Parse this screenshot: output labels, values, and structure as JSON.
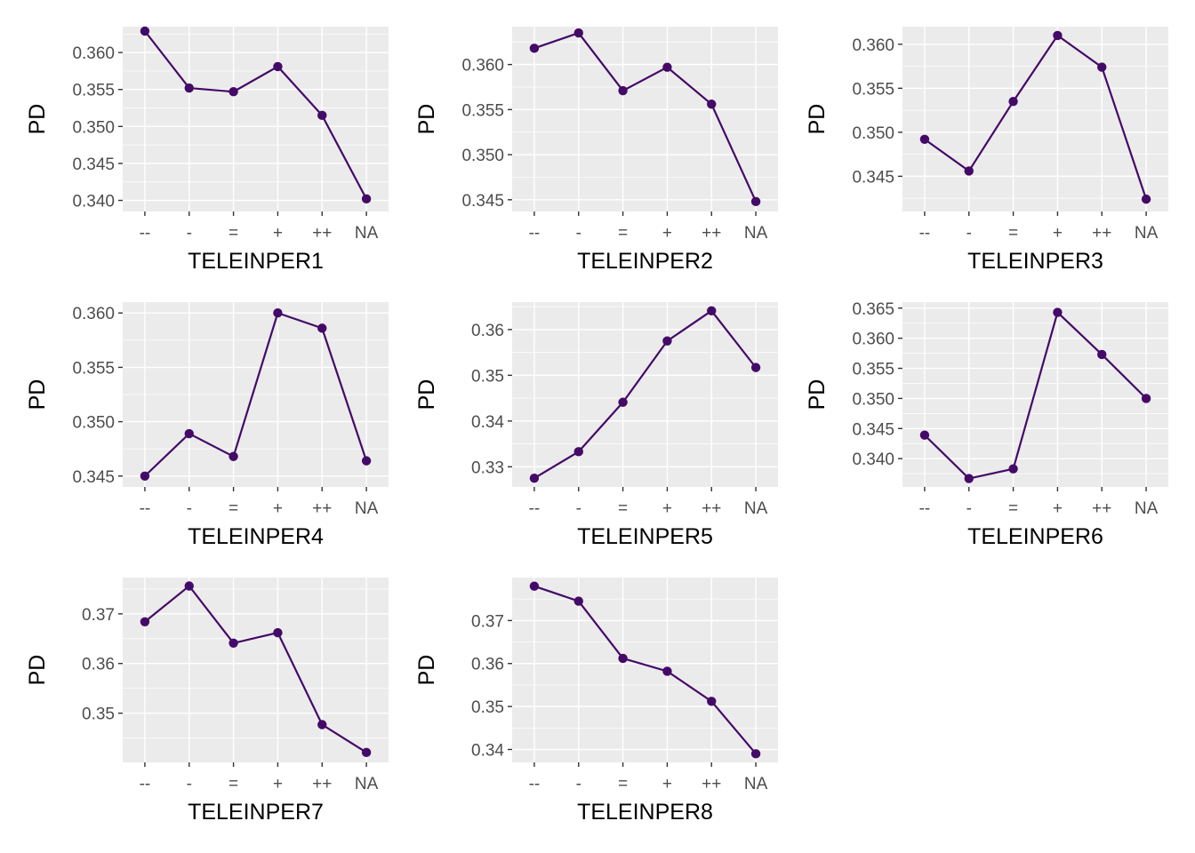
{
  "style": {
    "line_color": "#440a68",
    "panel_bg": "#ebebeb",
    "grid_color": "#ffffff",
    "text_color": "#4d4d4d",
    "title_color": "#000000"
  },
  "categories": [
    "--",
    "-",
    "=",
    "+",
    "++",
    "NA"
  ],
  "chart_data": [
    {
      "type": "line",
      "xlabel": "TELEINPER1",
      "ylabel": "PD",
      "ylim": [
        0.3385,
        0.3635
      ],
      "yticks": [
        "0.340",
        "0.345",
        "0.350",
        "0.355",
        "0.360"
      ],
      "ytick_values": [
        0.34,
        0.345,
        0.35,
        0.355,
        0.36
      ],
      "x": [
        "--",
        "-",
        "=",
        "+",
        "++",
        "NA"
      ],
      "values": [
        0.3629,
        0.3552,
        0.3547,
        0.3581,
        0.3515,
        0.3402
      ]
    },
    {
      "type": "line",
      "xlabel": "TELEINPER2",
      "ylabel": "PD",
      "ylim": [
        0.3437,
        0.3642
      ],
      "yticks": [
        "0.345",
        "0.350",
        "0.355",
        "0.360"
      ],
      "ytick_values": [
        0.345,
        0.35,
        0.355,
        0.36
      ],
      "x": [
        "--",
        "-",
        "=",
        "+",
        "++",
        "NA"
      ],
      "values": [
        0.3618,
        0.3635,
        0.3571,
        0.3597,
        0.3556,
        0.3448
      ]
    },
    {
      "type": "line",
      "xlabel": "TELEINPER3",
      "ylabel": "PD",
      "ylim": [
        0.341,
        0.362
      ],
      "yticks": [
        "0.345",
        "0.350",
        "0.355",
        "0.360"
      ],
      "ytick_values": [
        0.345,
        0.35,
        0.355,
        0.36
      ],
      "x": [
        "--",
        "-",
        "=",
        "+",
        "++",
        "NA"
      ],
      "values": [
        0.3492,
        0.3456,
        0.3535,
        0.361,
        0.3574,
        0.3424
      ]
    },
    {
      "type": "line",
      "xlabel": "TELEINPER4",
      "ylabel": "PD",
      "ylim": [
        0.344,
        0.361
      ],
      "yticks": [
        "0.345",
        "0.350",
        "0.355",
        "0.360"
      ],
      "ytick_values": [
        0.345,
        0.35,
        0.355,
        0.36
      ],
      "x": [
        "--",
        "-",
        "=",
        "+",
        "++",
        "NA"
      ],
      "values": [
        0.345,
        0.3489,
        0.3468,
        0.36,
        0.3586,
        0.3464
      ]
    },
    {
      "type": "line",
      "xlabel": "TELEINPER5",
      "ylabel": "PD",
      "ylim": [
        0.3256,
        0.366
      ],
      "yticks": [
        "0.33",
        "0.34",
        "0.35",
        "0.36"
      ],
      "ytick_values": [
        0.33,
        0.34,
        0.35,
        0.36
      ],
      "x": [
        "--",
        "-",
        "=",
        "+",
        "++",
        "NA"
      ],
      "values": [
        0.3275,
        0.3333,
        0.3441,
        0.3575,
        0.3641,
        0.3517
      ]
    },
    {
      "type": "line",
      "xlabel": "TELEINPER6",
      "ylabel": "PD",
      "ylim": [
        0.3353,
        0.366
      ],
      "yticks": [
        "0.340",
        "0.345",
        "0.350",
        "0.355",
        "0.360",
        "0.365"
      ],
      "ytick_values": [
        0.34,
        0.345,
        0.35,
        0.355,
        0.36,
        0.365
      ],
      "x": [
        "--",
        "-",
        "=",
        "+",
        "++",
        "NA"
      ],
      "values": [
        0.3439,
        0.3367,
        0.3383,
        0.3643,
        0.3573,
        0.35
      ]
    },
    {
      "type": "line",
      "xlabel": "TELEINPER7",
      "ylabel": "PD",
      "ylim": [
        0.3401,
        0.3773
      ],
      "yticks": [
        "0.35",
        "0.36",
        "0.37"
      ],
      "ytick_values": [
        0.35,
        0.36,
        0.37
      ],
      "x": [
        "--",
        "-",
        "=",
        "+",
        "++",
        "NA"
      ],
      "values": [
        0.3684,
        0.3756,
        0.3641,
        0.3662,
        0.3477,
        0.3421
      ]
    },
    {
      "type": "line",
      "xlabel": "TELEINPER8",
      "ylabel": "PD",
      "ylim": [
        0.337,
        0.38
      ],
      "yticks": [
        "0.34",
        "0.35",
        "0.36",
        "0.37"
      ],
      "ytick_values": [
        0.34,
        0.35,
        0.36,
        0.37
      ],
      "x": [
        "--",
        "-",
        "=",
        "+",
        "++",
        "NA"
      ],
      "values": [
        0.378,
        0.3745,
        0.3612,
        0.3582,
        0.3512,
        0.339
      ]
    }
  ]
}
